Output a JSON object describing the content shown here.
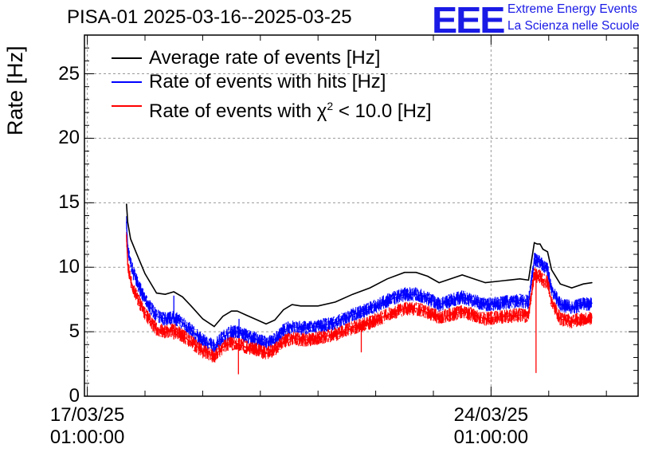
{
  "chart_data": {
    "type": "line",
    "title": "PISA-01 2025-03-16--2025-03-25",
    "xlabel": "",
    "ylabel": "Rate [Hz]",
    "ylim": [
      0,
      28
    ],
    "yticks": [
      "0",
      "5",
      "10",
      "15",
      "20",
      "25"
    ],
    "xticks": [
      {
        "date": "17/03/25",
        "time": "01:00:00"
      },
      {
        "date": "24/03/25",
        "time": "01:00:00"
      }
    ],
    "xlim_days": [
      -0.05,
      9.55
    ],
    "grid": true,
    "legend_position": "top-left",
    "series": [
      {
        "name": "Average rate of events [Hz]",
        "color": "#000000",
        "x": [
          0.68,
          0.7,
          0.75,
          0.85,
          1.0,
          1.2,
          1.35,
          1.5,
          1.65,
          1.8,
          2.0,
          2.2,
          2.35,
          2.5,
          2.6,
          2.75,
          2.95,
          3.1,
          3.25,
          3.4,
          3.55,
          3.7,
          3.85,
          4.0,
          4.3,
          4.6,
          4.9,
          5.2,
          5.5,
          5.7,
          5.9,
          6.1,
          6.3,
          6.5,
          6.7,
          6.9,
          7.1,
          7.3,
          7.5,
          7.65,
          7.75,
          7.8,
          7.85,
          7.9,
          7.98,
          8.05,
          8.2,
          8.4,
          8.6,
          8.75
        ],
        "y": [
          14.9,
          13.5,
          12.2,
          11.1,
          9.5,
          8.0,
          7.9,
          8.1,
          7.7,
          7.0,
          6.0,
          5.4,
          6.2,
          6.6,
          6.6,
          6.3,
          5.9,
          5.6,
          5.9,
          6.7,
          7.1,
          7.0,
          7.0,
          7.0,
          7.3,
          7.9,
          8.4,
          9.1,
          9.6,
          9.6,
          9.3,
          8.8,
          9.1,
          9.4,
          9.1,
          8.8,
          8.9,
          9.0,
          9.1,
          9.0,
          11.9,
          11.8,
          11.8,
          11.4,
          11.2,
          9.8,
          8.7,
          8.4,
          8.7,
          8.8
        ]
      },
      {
        "name": "Rate of events with hits [Hz]",
        "color": "#0000ff",
        "x": [
          0.68,
          0.7,
          0.75,
          0.85,
          1.0,
          1.2,
          1.35,
          1.5,
          1.65,
          1.8,
          2.0,
          2.2,
          2.35,
          2.5,
          2.6,
          2.75,
          2.95,
          3.1,
          3.25,
          3.4,
          3.55,
          3.7,
          3.85,
          4.0,
          4.3,
          4.6,
          4.9,
          5.2,
          5.5,
          5.7,
          5.9,
          6.1,
          6.3,
          6.5,
          6.7,
          6.9,
          7.1,
          7.3,
          7.5,
          7.65,
          7.75,
          7.8,
          7.85,
          7.9,
          7.98,
          8.05,
          8.2,
          8.4,
          8.6,
          8.75
        ],
        "y": [
          13.5,
          11.5,
          10.3,
          9.0,
          7.5,
          6.2,
          6.0,
          6.1,
          5.7,
          5.1,
          4.3,
          3.9,
          4.6,
          5.0,
          5.0,
          4.7,
          4.4,
          4.1,
          4.4,
          5.1,
          5.4,
          5.3,
          5.3,
          5.4,
          5.7,
          6.3,
          6.8,
          7.4,
          7.9,
          7.9,
          7.6,
          7.1,
          7.4,
          7.7,
          7.4,
          7.1,
          7.2,
          7.3,
          7.4,
          7.3,
          10.6,
          10.5,
          10.4,
          10.1,
          9.8,
          8.3,
          7.1,
          6.9,
          7.1,
          7.2
        ]
      },
      {
        "name": "Rate of events with χ² < 10.0 [Hz]",
        "color": "#ff0000",
        "x": [
          0.68,
          0.7,
          0.75,
          0.85,
          1.0,
          1.2,
          1.35,
          1.5,
          1.65,
          1.8,
          2.0,
          2.2,
          2.35,
          2.5,
          2.6,
          2.75,
          2.95,
          3.1,
          3.25,
          3.4,
          3.55,
          3.7,
          3.85,
          4.0,
          4.3,
          4.6,
          4.9,
          5.2,
          5.5,
          5.7,
          5.9,
          6.1,
          6.3,
          6.5,
          6.7,
          6.9,
          7.1,
          7.3,
          7.5,
          7.65,
          7.75,
          7.8,
          7.85,
          7.9,
          7.98,
          8.05,
          8.2,
          8.4,
          8.6,
          8.75
        ],
        "y": [
          12.5,
          10.2,
          9.0,
          7.8,
          6.4,
          5.2,
          5.0,
          5.1,
          4.7,
          4.2,
          3.5,
          3.1,
          3.8,
          4.1,
          4.1,
          3.8,
          3.6,
          3.3,
          3.6,
          4.2,
          4.5,
          4.4,
          4.4,
          4.5,
          4.8,
          5.3,
          5.7,
          6.3,
          6.8,
          6.8,
          6.5,
          6.1,
          6.3,
          6.6,
          6.3,
          6.0,
          6.1,
          6.2,
          6.3,
          6.2,
          9.5,
          9.3,
          9.3,
          9.0,
          8.8,
          7.3,
          6.0,
          5.8,
          6.0,
          6.1
        ]
      }
    ]
  },
  "legend": {
    "avg": "Average rate of events [Hz]",
    "hits": "Rate of events with hits [Hz]",
    "chi_prefix": "Rate of events with ",
    "chi_symbol": "χ",
    "chi_sup": "2",
    "chi_suffix": " < 10.0 [Hz]"
  },
  "logo": {
    "mark": "EEE",
    "line1": "Extreme Energy Events",
    "line2": "La Scienza nelle Scuole"
  }
}
